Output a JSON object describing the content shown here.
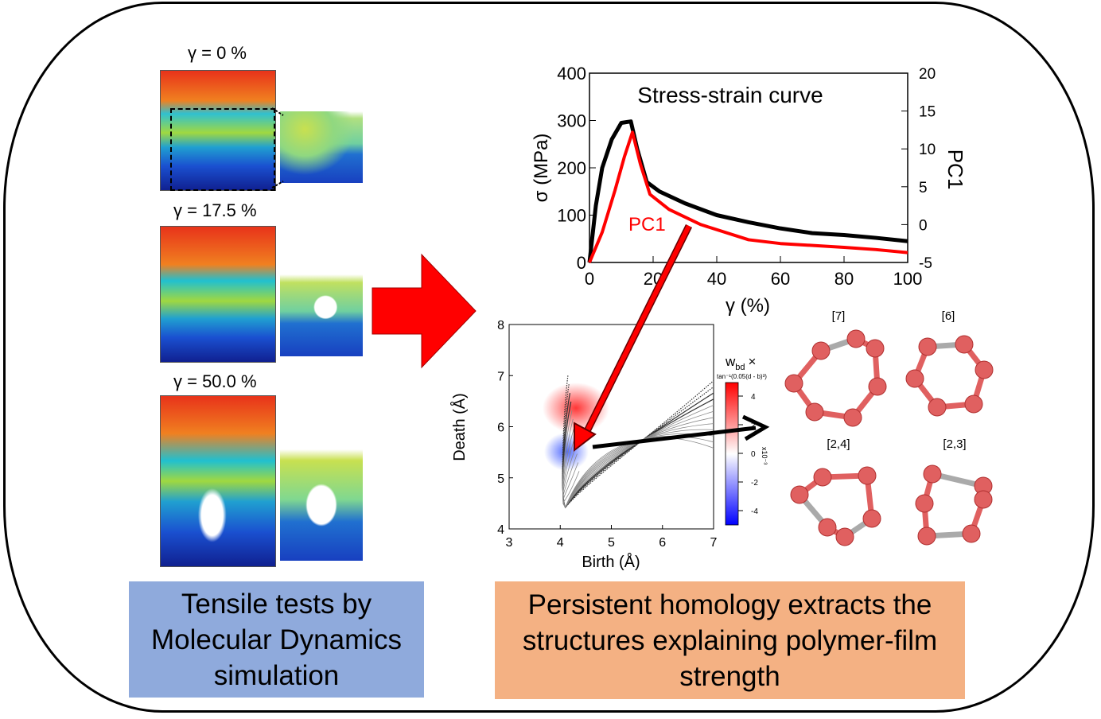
{
  "simulations": [
    {
      "label": "γ = 0 %"
    },
    {
      "label": "γ = 17.5 %"
    },
    {
      "label": "γ = 50.0 %"
    }
  ],
  "captions": {
    "left": [
      "Tensile tests by",
      "Molecular Dynamics",
      "simulation"
    ],
    "right": [
      "Persistent homology extracts the",
      "structures explaining polymer-film",
      "strength"
    ]
  },
  "colors": {
    "left_caption_bg": "#8faadc",
    "right_caption_bg": "#f4b183",
    "arrow": "#ff0000",
    "pc1": "#ff0000",
    "stress": "#000000",
    "ring_atom": "#e06060",
    "ring_bond_extra": "#aaaaaa"
  },
  "chart_data": [
    {
      "type": "line",
      "title": "Stress-strain curve",
      "xlabel": "γ (%)",
      "ylabel": "σ (MPa)",
      "y2label": "PC1",
      "xlim": [
        0,
        100
      ],
      "ylim": [
        0,
        400
      ],
      "y2lim": [
        -5,
        20
      ],
      "xticks": [
        0,
        20,
        40,
        60,
        80,
        100
      ],
      "yticks": [
        0,
        100,
        200,
        300,
        400
      ],
      "y2ticks": [
        -5,
        0,
        5,
        10,
        15,
        20
      ],
      "series": [
        {
          "name": "",
          "axis": "left",
          "x": [
            0,
            2,
            4,
            7,
            10,
            13,
            15,
            18,
            22,
            30,
            40,
            50,
            60,
            70,
            80,
            90,
            100
          ],
          "y": [
            0,
            120,
            200,
            260,
            295,
            298,
            240,
            170,
            150,
            125,
            100,
            85,
            72,
            62,
            58,
            52,
            45
          ]
        },
        {
          "name": "PC1",
          "axis": "right",
          "x": [
            0,
            4,
            8,
            11,
            13.5,
            16,
            19,
            25,
            35,
            50,
            60,
            80,
            90,
            100
          ],
          "y": [
            -5,
            -1,
            4.5,
            9,
            12.2,
            8,
            4,
            2,
            0,
            -2,
            -2.5,
            -3,
            -3.3,
            -3.7
          ]
        }
      ]
    },
    {
      "type": "heatmap",
      "xlabel": "Birth (Å)",
      "ylabel": "Death (Å)",
      "xlim": [
        3,
        7
      ],
      "ylim": [
        4,
        8
      ],
      "xticks": [
        3,
        4,
        5,
        6,
        7
      ],
      "yticks": [
        4,
        5,
        6,
        7,
        8
      ],
      "colorbar": {
        "title": "w",
        "title_sub": "bd",
        "title_suffix": "×",
        "subtitle": "tan⁻¹(0.05(d - b)³)",
        "ticks": [
          "4",
          "2",
          "0",
          "-2",
          "-4"
        ],
        "multiplier": "x10⁻³",
        "range": [
          -5,
          5
        ]
      }
    }
  ],
  "rings": [
    {
      "label": "[7]"
    },
    {
      "label": "[6]"
    },
    {
      "label": "[2,4]"
    },
    {
      "label": "[2,3]"
    }
  ]
}
